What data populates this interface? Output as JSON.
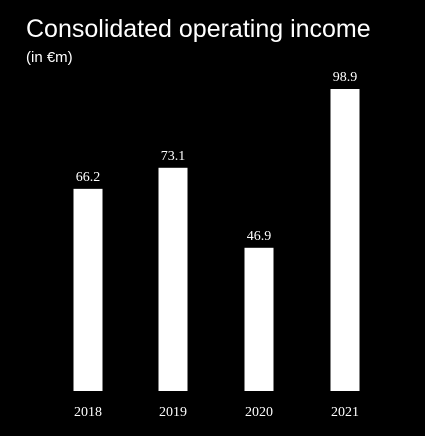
{
  "chart_data": {
    "type": "bar",
    "title": "Consolidated operating income",
    "subtitle": "(in €m)",
    "categories": [
      "2018",
      "2019",
      "2020",
      "2021"
    ],
    "values": [
      66.2,
      73.1,
      46.9,
      98.9
    ],
    "data_labels": [
      "66.2",
      "73.1",
      "46.9",
      "98.9"
    ],
    "xlabel": "",
    "ylabel": "",
    "ylim": [
      0,
      100
    ],
    "grid": false,
    "legend": "none",
    "colors": {
      "background": "#000000",
      "bar": "#ffffff",
      "text": "#ffffff"
    }
  }
}
